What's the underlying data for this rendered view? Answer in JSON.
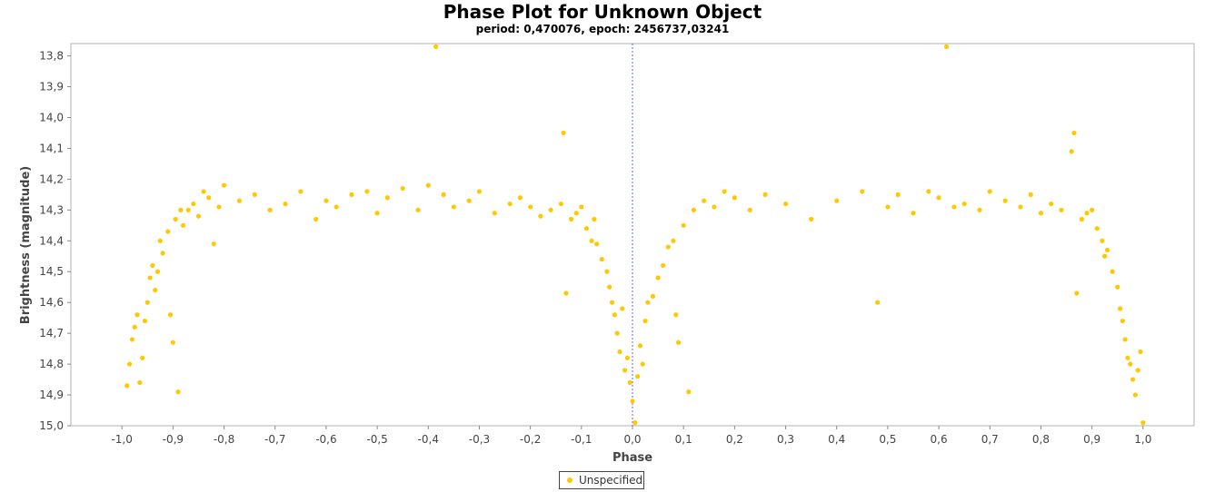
{
  "chart_data": {
    "type": "scatter",
    "title": "Phase Plot for Unknown Object",
    "subtitle": "period: 0,470076, epoch: 2456737,03241",
    "xlabel": "Phase",
    "ylabel": "Brightness (magnitude)",
    "xlim": [
      -1.1,
      1.1
    ],
    "ylim": [
      15.0,
      13.76
    ],
    "y_inverted": true,
    "x_ticks": [
      "-1,0",
      "-0,9",
      "-0,8",
      "-0,7",
      "-0,6",
      "-0,5",
      "-0,4",
      "-0,3",
      "-0,2",
      "-0,1",
      "0,0",
      "0,1",
      "0,2",
      "0,3",
      "0,4",
      "0,5",
      "0,6",
      "0,7",
      "0,8",
      "0,9",
      "1,0"
    ],
    "y_ticks": [
      "13,8",
      "13,9",
      "14,0",
      "14,1",
      "14,2",
      "14,3",
      "14,4",
      "14,5",
      "14,6",
      "14,7",
      "14,8",
      "14,9",
      "15,0"
    ],
    "zero_line_x": 0.0,
    "grid": false,
    "legend_position": "bottom-center",
    "series": [
      {
        "name": "Unspecified",
        "color": "#ffc800",
        "x": [
          -0.99,
          -0.985,
          -0.98,
          -0.975,
          -0.97,
          -0.965,
          -0.96,
          -0.955,
          -0.95,
          -0.945,
          -0.94,
          -0.935,
          -0.93,
          -0.925,
          -0.92,
          -0.91,
          -0.905,
          -0.9,
          -0.895,
          -0.89,
          -0.885,
          -0.88,
          -0.87,
          -0.86,
          -0.85,
          -0.84,
          -0.83,
          -0.82,
          -0.81,
          -0.8,
          -0.77,
          -0.74,
          -0.71,
          -0.68,
          -0.65,
          -0.62,
          -0.6,
          -0.58,
          -0.55,
          -0.52,
          -0.5,
          -0.48,
          -0.45,
          -0.42,
          -0.4,
          -0.385,
          -0.37,
          -0.35,
          -0.32,
          -0.3,
          -0.27,
          -0.24,
          -0.22,
          -0.2,
          -0.18,
          -0.16,
          -0.14,
          -0.135,
          -0.13,
          -0.12,
          -0.11,
          -0.1,
          -0.09,
          -0.08,
          -0.075,
          -0.07,
          -0.06,
          -0.05,
          -0.045,
          -0.04,
          -0.035,
          -0.03,
          -0.025,
          -0.02,
          -0.015,
          -0.01,
          -0.005,
          0.0,
          0.005,
          0.01,
          0.015,
          0.02,
          0.025,
          0.03,
          0.04,
          0.05,
          0.06,
          0.07,
          0.08,
          0.085,
          0.09,
          0.1,
          0.11,
          0.12,
          0.14,
          0.16,
          0.18,
          0.2,
          0.23,
          0.26,
          0.3,
          0.35,
          0.4,
          0.45,
          0.48,
          0.5,
          0.52,
          0.55,
          0.58,
          0.6,
          0.615,
          0.63,
          0.65,
          0.68,
          0.7,
          0.73,
          0.76,
          0.78,
          0.8,
          0.82,
          0.84,
          0.86,
          0.865,
          0.87,
          0.88,
          0.89,
          0.9,
          0.91,
          0.92,
          0.925,
          0.93,
          0.94,
          0.95,
          0.955,
          0.96,
          0.965,
          0.97,
          0.975,
          0.98,
          0.985,
          0.99,
          0.995,
          1.0
        ],
        "y": [
          14.87,
          14.8,
          14.72,
          14.68,
          14.64,
          14.86,
          14.78,
          14.66,
          14.6,
          14.52,
          14.48,
          14.56,
          14.5,
          14.4,
          14.44,
          14.37,
          14.64,
          14.73,
          14.33,
          14.89,
          14.3,
          14.35,
          14.3,
          14.28,
          14.32,
          14.24,
          14.26,
          14.41,
          14.29,
          14.22,
          14.27,
          14.25,
          14.3,
          14.28,
          14.24,
          14.33,
          14.27,
          14.29,
          14.25,
          14.24,
          14.31,
          14.26,
          14.23,
          14.3,
          14.22,
          13.77,
          14.25,
          14.29,
          14.27,
          14.24,
          14.31,
          14.28,
          14.26,
          14.29,
          14.32,
          14.3,
          14.28,
          14.05,
          14.57,
          14.33,
          14.31,
          14.29,
          14.36,
          14.4,
          14.33,
          14.41,
          14.46,
          14.5,
          14.55,
          14.6,
          14.64,
          14.7,
          14.76,
          14.62,
          14.82,
          14.78,
          14.86,
          14.92,
          14.99,
          14.84,
          14.74,
          14.8,
          14.66,
          14.6,
          14.58,
          14.52,
          14.48,
          14.42,
          14.4,
          14.64,
          14.73,
          14.35,
          14.89,
          14.3,
          14.27,
          14.29,
          14.24,
          14.26,
          14.3,
          14.25,
          14.28,
          14.33,
          14.27,
          14.24,
          14.6,
          14.29,
          14.25,
          14.31,
          14.24,
          14.26,
          13.77,
          14.29,
          14.28,
          14.3,
          14.24,
          14.27,
          14.29,
          14.25,
          14.31,
          14.28,
          14.3,
          14.11,
          14.05,
          14.57,
          14.33,
          14.31,
          14.3,
          14.36,
          14.4,
          14.45,
          14.43,
          14.5,
          14.55,
          14.62,
          14.66,
          14.72,
          14.78,
          14.8,
          14.85,
          14.9,
          14.82,
          14.76,
          14.99
        ]
      }
    ]
  },
  "legend": {
    "label": "Unspecified"
  }
}
